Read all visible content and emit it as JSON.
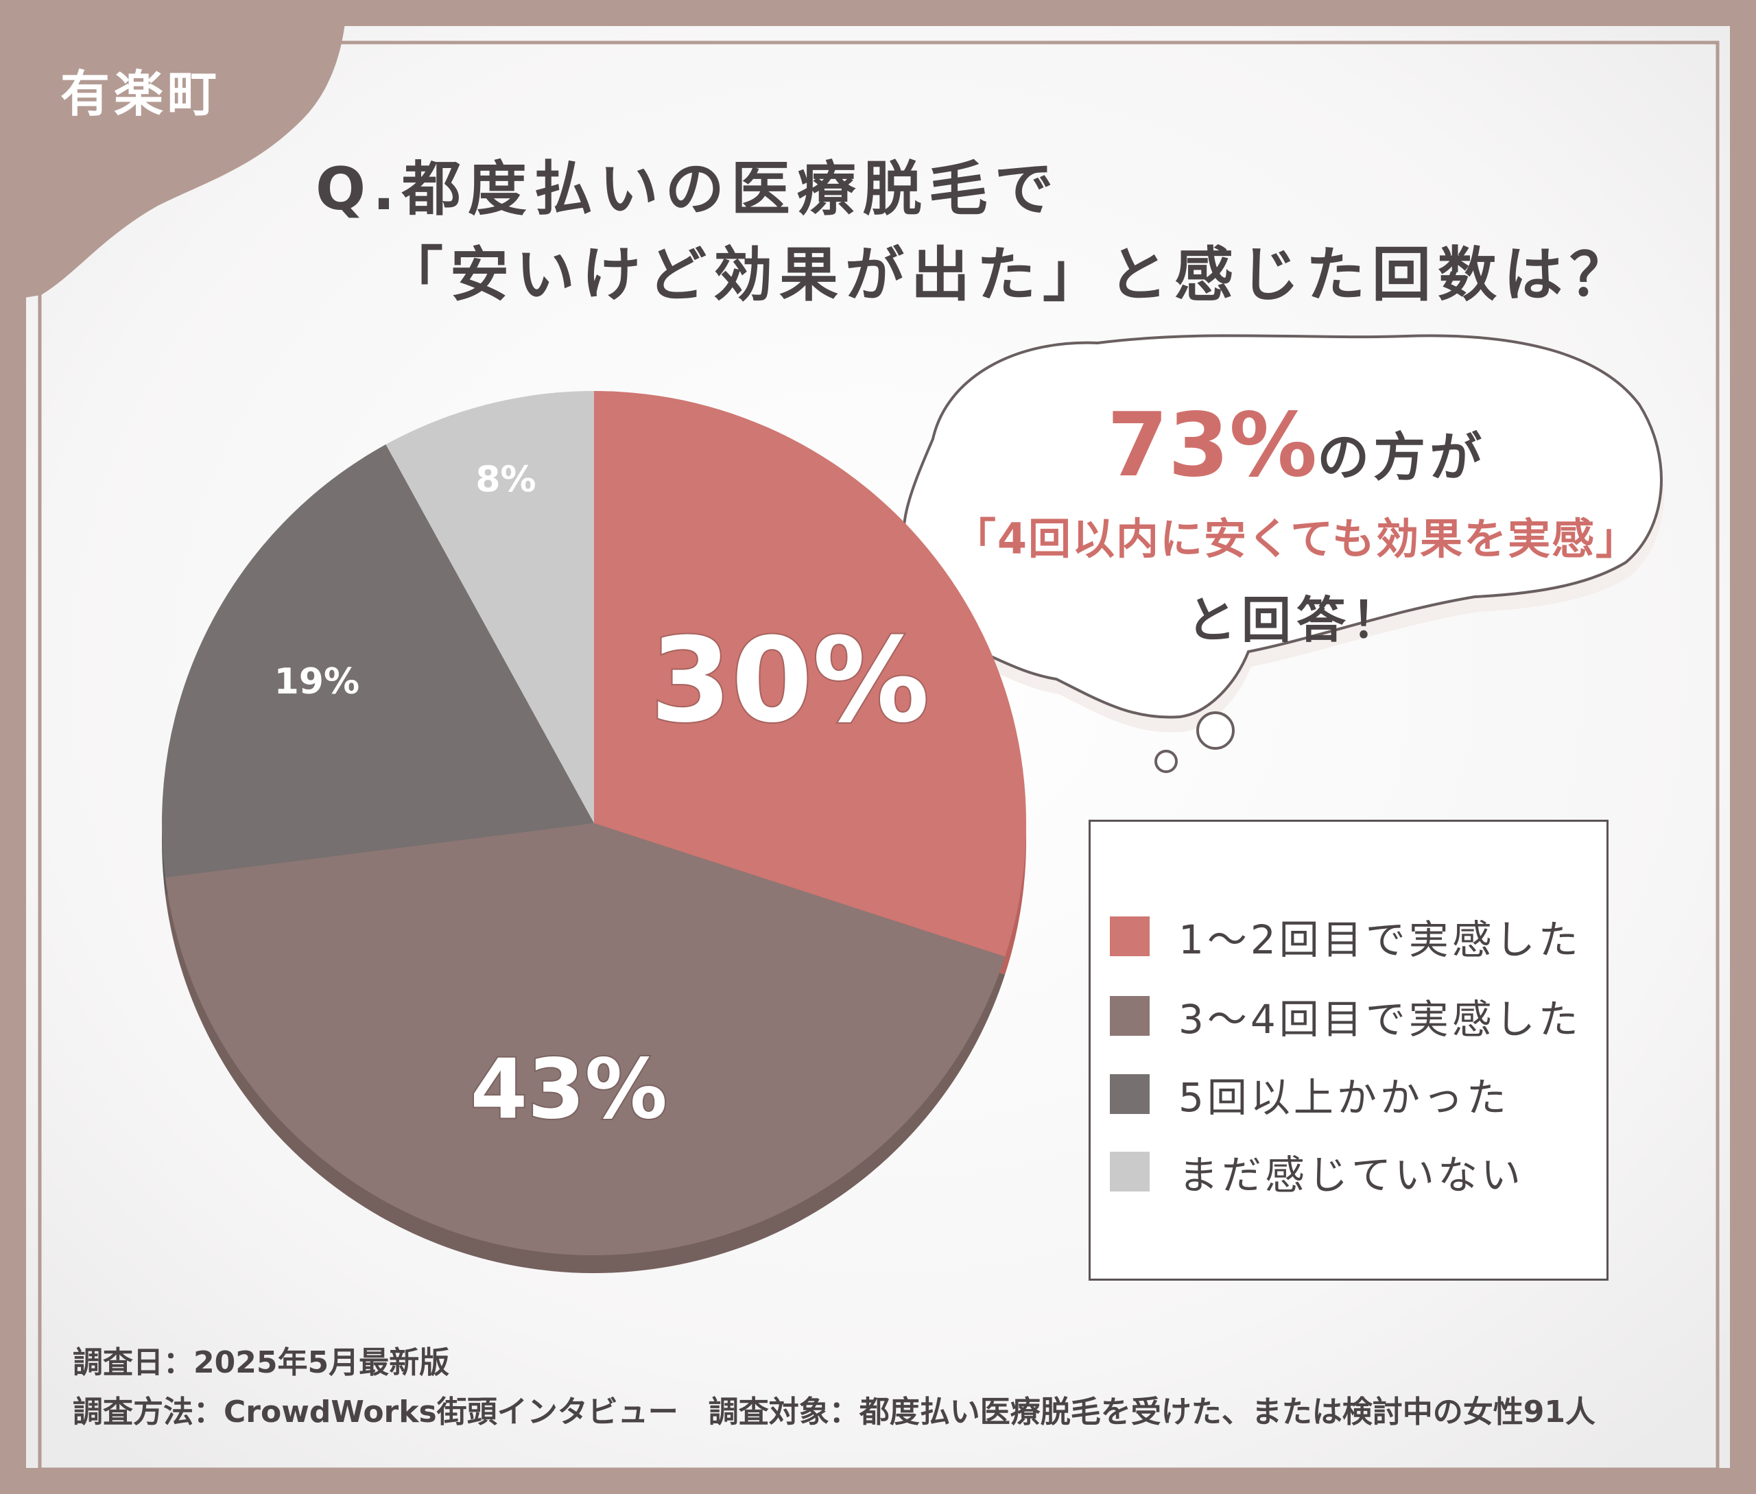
{
  "area_label": "有楽町",
  "question": {
    "line1": "Q.都度払いの医療脱毛で",
    "line2": "「安いけど効果が出た」と感じた回数は？"
  },
  "callout": {
    "percent": "73%",
    "suffix": "の方が",
    "line2": "「4回以内に安くても効果を実感」",
    "line3": "と回答！"
  },
  "chart_data": {
    "type": "pie",
    "start": "12 o'clock, clockwise",
    "categories": [
      "1〜2回目で実感した",
      "3〜4回目で実感した",
      "5回以上かかった",
      "まだ感じていない"
    ],
    "values": [
      30,
      43,
      19,
      8
    ],
    "labels": [
      "30%",
      "43%",
      "19%",
      "8%"
    ],
    "colors": [
      "#cf7772",
      "#8c7774",
      "#767070",
      "#cbcaca"
    ],
    "legend": "right"
  },
  "footer": {
    "date": "調査日：2025年5月最新版",
    "method": "調査方法：CrowdWorks街頭インタビュー　調査対象：都度払い医療脱毛を受けた、または検討中の女性91人"
  },
  "colors": {
    "frame": "#b39b93",
    "accent": "#cf6f6b",
    "text": "#4a4446"
  }
}
